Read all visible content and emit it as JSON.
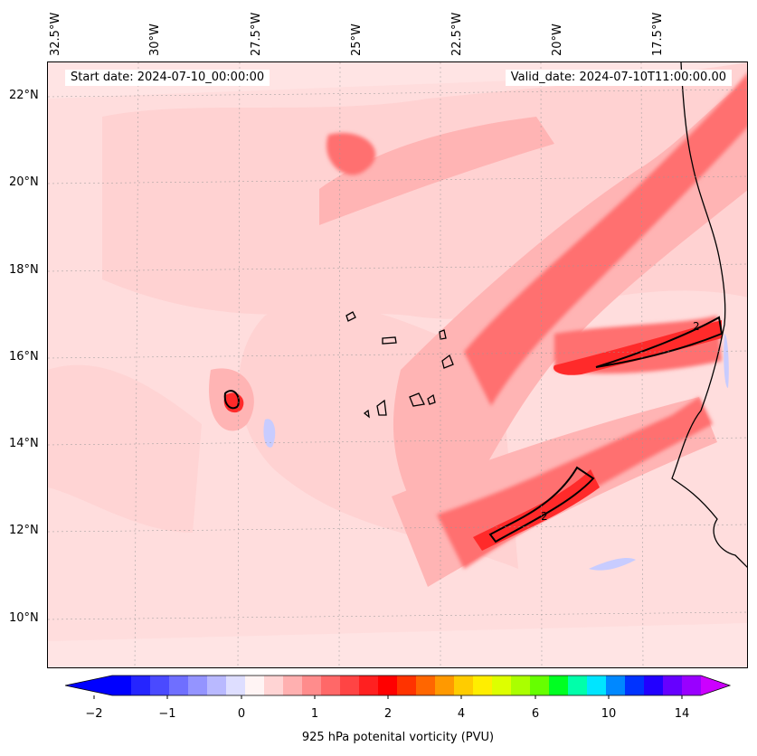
{
  "header": {
    "start_date": "Start date: 2024-07-10_00:00:00",
    "valid_date": "Valid_date: 2024-07-10T11:00:00.00"
  },
  "axes": {
    "lon_labels": [
      "32.5°W",
      "30°W",
      "27.5°W",
      "25°W",
      "22.5°W",
      "20°W",
      "17.5°W"
    ],
    "lat_labels": [
      "22°N",
      "20°N",
      "18°N",
      "16°N",
      "14°N",
      "12°N",
      "10°N"
    ]
  },
  "contour_label": "2",
  "colorbar": {
    "label": "925 hPa potenital vorticity (PVU)",
    "ticks": [
      "−2",
      "−1",
      "0",
      "1",
      "2",
      "4",
      "6",
      "10",
      "14"
    ],
    "colors": [
      "#0000ff",
      "#2525ff",
      "#4a4aff",
      "#6f6fff",
      "#9494ff",
      "#b9b9ff",
      "#dedeff",
      "#fff4f4",
      "#ffd4d4",
      "#ffb0b0",
      "#ff8c8c",
      "#ff6868",
      "#ff4444",
      "#ff2020",
      "#ff0000",
      "#ff3300",
      "#ff6600",
      "#ff9900",
      "#ffcc00",
      "#ffee00",
      "#ddff00",
      "#aaff00",
      "#66ff00",
      "#00ff22",
      "#00ffaa",
      "#00e5ff",
      "#0088ff",
      "#0033ff",
      "#2200ff",
      "#6600ff",
      "#9900ff"
    ],
    "extend_low": "#0000ff",
    "extend_high": "#cc00ff"
  },
  "colors": {
    "background_field": "#ffe4e4",
    "light": "#ffd4d4",
    "medium": "#ffb0b0",
    "strong": "#ff6868",
    "intense": "#ff2828",
    "negative": "#c8ccff",
    "coast": "#000000"
  }
}
